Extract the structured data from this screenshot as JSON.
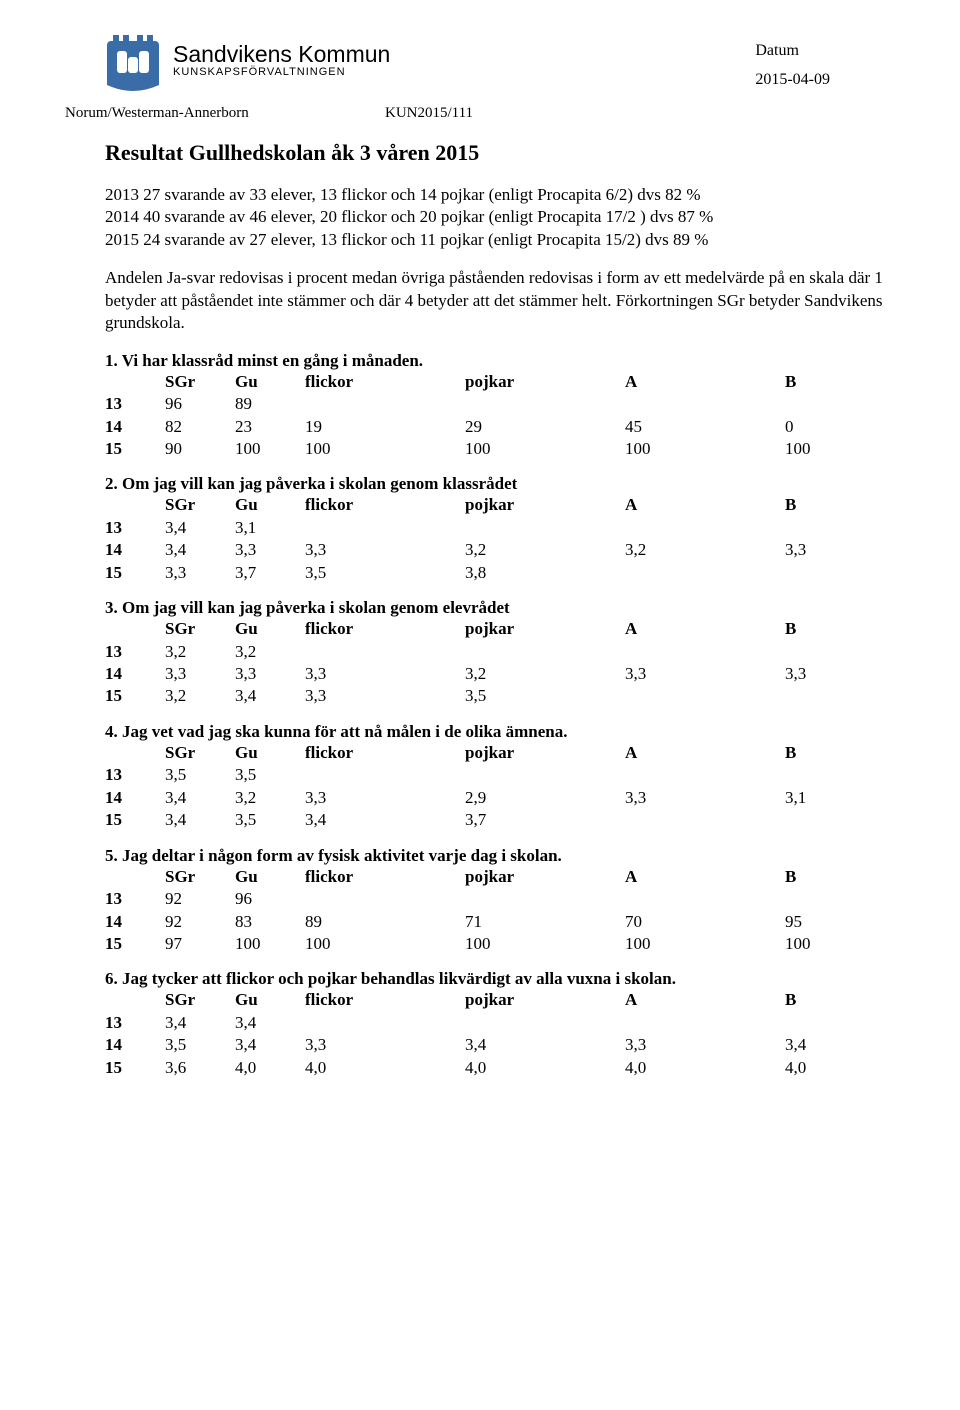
{
  "header": {
    "logo_main": "Sandvikens Kommun",
    "logo_sub": "KUNSKAPSFÖRVALTNINGEN",
    "date_label": "Datum",
    "date_value": "2015-04-09",
    "byline": "Norum/Westerman-Annerborn",
    "ref": "KUN2015/111"
  },
  "title": "Resultat Gullhedskolan åk 3 våren 2015",
  "intro": {
    "p1": "2013 27 svarande av 33 elever, 13 flickor och 14 pojkar (enligt Procapita 6/2) dvs 82 %\n2014 40 svarande av 46 elever, 20 flickor och 20 pojkar (enligt Procapita 17/2 ) dvs 87 %\n2015 24 svarande av 27 elever, 13 flickor och 11 pojkar (enligt Procapita 15/2) dvs 89 %",
    "p2": "Andelen Ja-svar redovisas i procent medan övriga påståenden redovisas i form av ett medelvärde på en skala där 1 betyder att påståendet inte stämmer och där 4 betyder att det stämmer helt. Förkortningen SGr betyder Sandvikens grundskola."
  },
  "cols": {
    "sgr": "SGr",
    "gu": "Gu",
    "flickor": "flickor",
    "pojkar": "pojkar",
    "a": "A",
    "b": "B"
  },
  "questions": [
    {
      "title": "1. Vi har klassråd minst en gång i månaden.",
      "rows": [
        {
          "yr": "13",
          "sgr": "96",
          "gu": "89",
          "fl": "",
          "po": "",
          "a": "",
          "b": ""
        },
        {
          "yr": "14",
          "sgr": "82",
          "gu": "23",
          "fl": "19",
          "po": "29",
          "a": "45",
          "b": "0"
        },
        {
          "yr": "15",
          "sgr": "90",
          "gu": "100",
          "fl": "100",
          "po": "100",
          "a": "100",
          "b": "100"
        }
      ]
    },
    {
      "title": "2. Om jag vill kan jag påverka i skolan genom klassrådet",
      "rows": [
        {
          "yr": "13",
          "sgr": "3,4",
          "gu": "3,1",
          "fl": "",
          "po": "",
          "a": "",
          "b": ""
        },
        {
          "yr": "14",
          "sgr": "3,4",
          "gu": "3,3",
          "fl": "3,3",
          "po": "3,2",
          "a": "3,2",
          "b": "3,3"
        },
        {
          "yr": "15",
          "sgr": "3,3",
          "gu": "3,7",
          "fl": "3,5",
          "po": "3,8",
          "a": "",
          "b": ""
        }
      ]
    },
    {
      "title": "3. Om jag vill kan jag påverka i skolan genom elevrådet",
      "rows": [
        {
          "yr": "13",
          "sgr": "3,2",
          "gu": "3,2",
          "fl": "",
          "po": "",
          "a": "",
          "b": ""
        },
        {
          "yr": "14",
          "sgr": "3,3",
          "gu": "3,3",
          "fl": "3,3",
          "po": "3,2",
          "a": "3,3",
          "b": "3,3"
        },
        {
          "yr": "15",
          "sgr": "3,2",
          "gu": "3,4",
          "fl": "3,3",
          "po": "3,5",
          "a": "",
          "b": ""
        }
      ]
    },
    {
      "title": "4. Jag vet vad jag ska kunna för att nå målen i de olika ämnena.",
      "rows": [
        {
          "yr": "13",
          "sgr": "3,5",
          "gu": "3,5",
          "fl": "",
          "po": "",
          "a": "",
          "b": ""
        },
        {
          "yr": "14",
          "sgr": "3,4",
          "gu": "3,2",
          "fl": "3,3",
          "po": "2,9",
          "a": "3,3",
          "b": "3,1"
        },
        {
          "yr": "15",
          "sgr": "3,4",
          "gu": "3,5",
          "fl": "3,4",
          "po": "3,7",
          "a": "",
          "b": ""
        }
      ]
    },
    {
      "title": "5. Jag deltar i någon form av fysisk aktivitet varje dag i skolan.",
      "rows": [
        {
          "yr": "13",
          "sgr": "92",
          "gu": "96",
          "fl": "",
          "po": "",
          "a": "",
          "b": ""
        },
        {
          "yr": "14",
          "sgr": "92",
          "gu": "83",
          "fl": "89",
          "po": "71",
          "a": "70",
          "b": "95"
        },
        {
          "yr": "15",
          "sgr": "97",
          "gu": "100",
          "fl": "100",
          "po": "100",
          "a": "100",
          "b": "100"
        }
      ]
    },
    {
      "title": "6. Jag tycker att flickor och pojkar behandlas likvärdigt av alla vuxna i skolan.",
      "rows": [
        {
          "yr": "13",
          "sgr": "3,4",
          "gu": "3,4",
          "fl": "",
          "po": "",
          "a": "",
          "b": ""
        },
        {
          "yr": "14",
          "sgr": "3,5",
          "gu": "3,4",
          "fl": "3,3",
          "po": "3,4",
          "a": "3,3",
          "b": "3,4"
        },
        {
          "yr": "15",
          "sgr": "3,6",
          "gu": "4,0",
          "fl": "4,0",
          "po": "4,0",
          "a": "4,0",
          "b": "4,0"
        }
      ]
    }
  ]
}
